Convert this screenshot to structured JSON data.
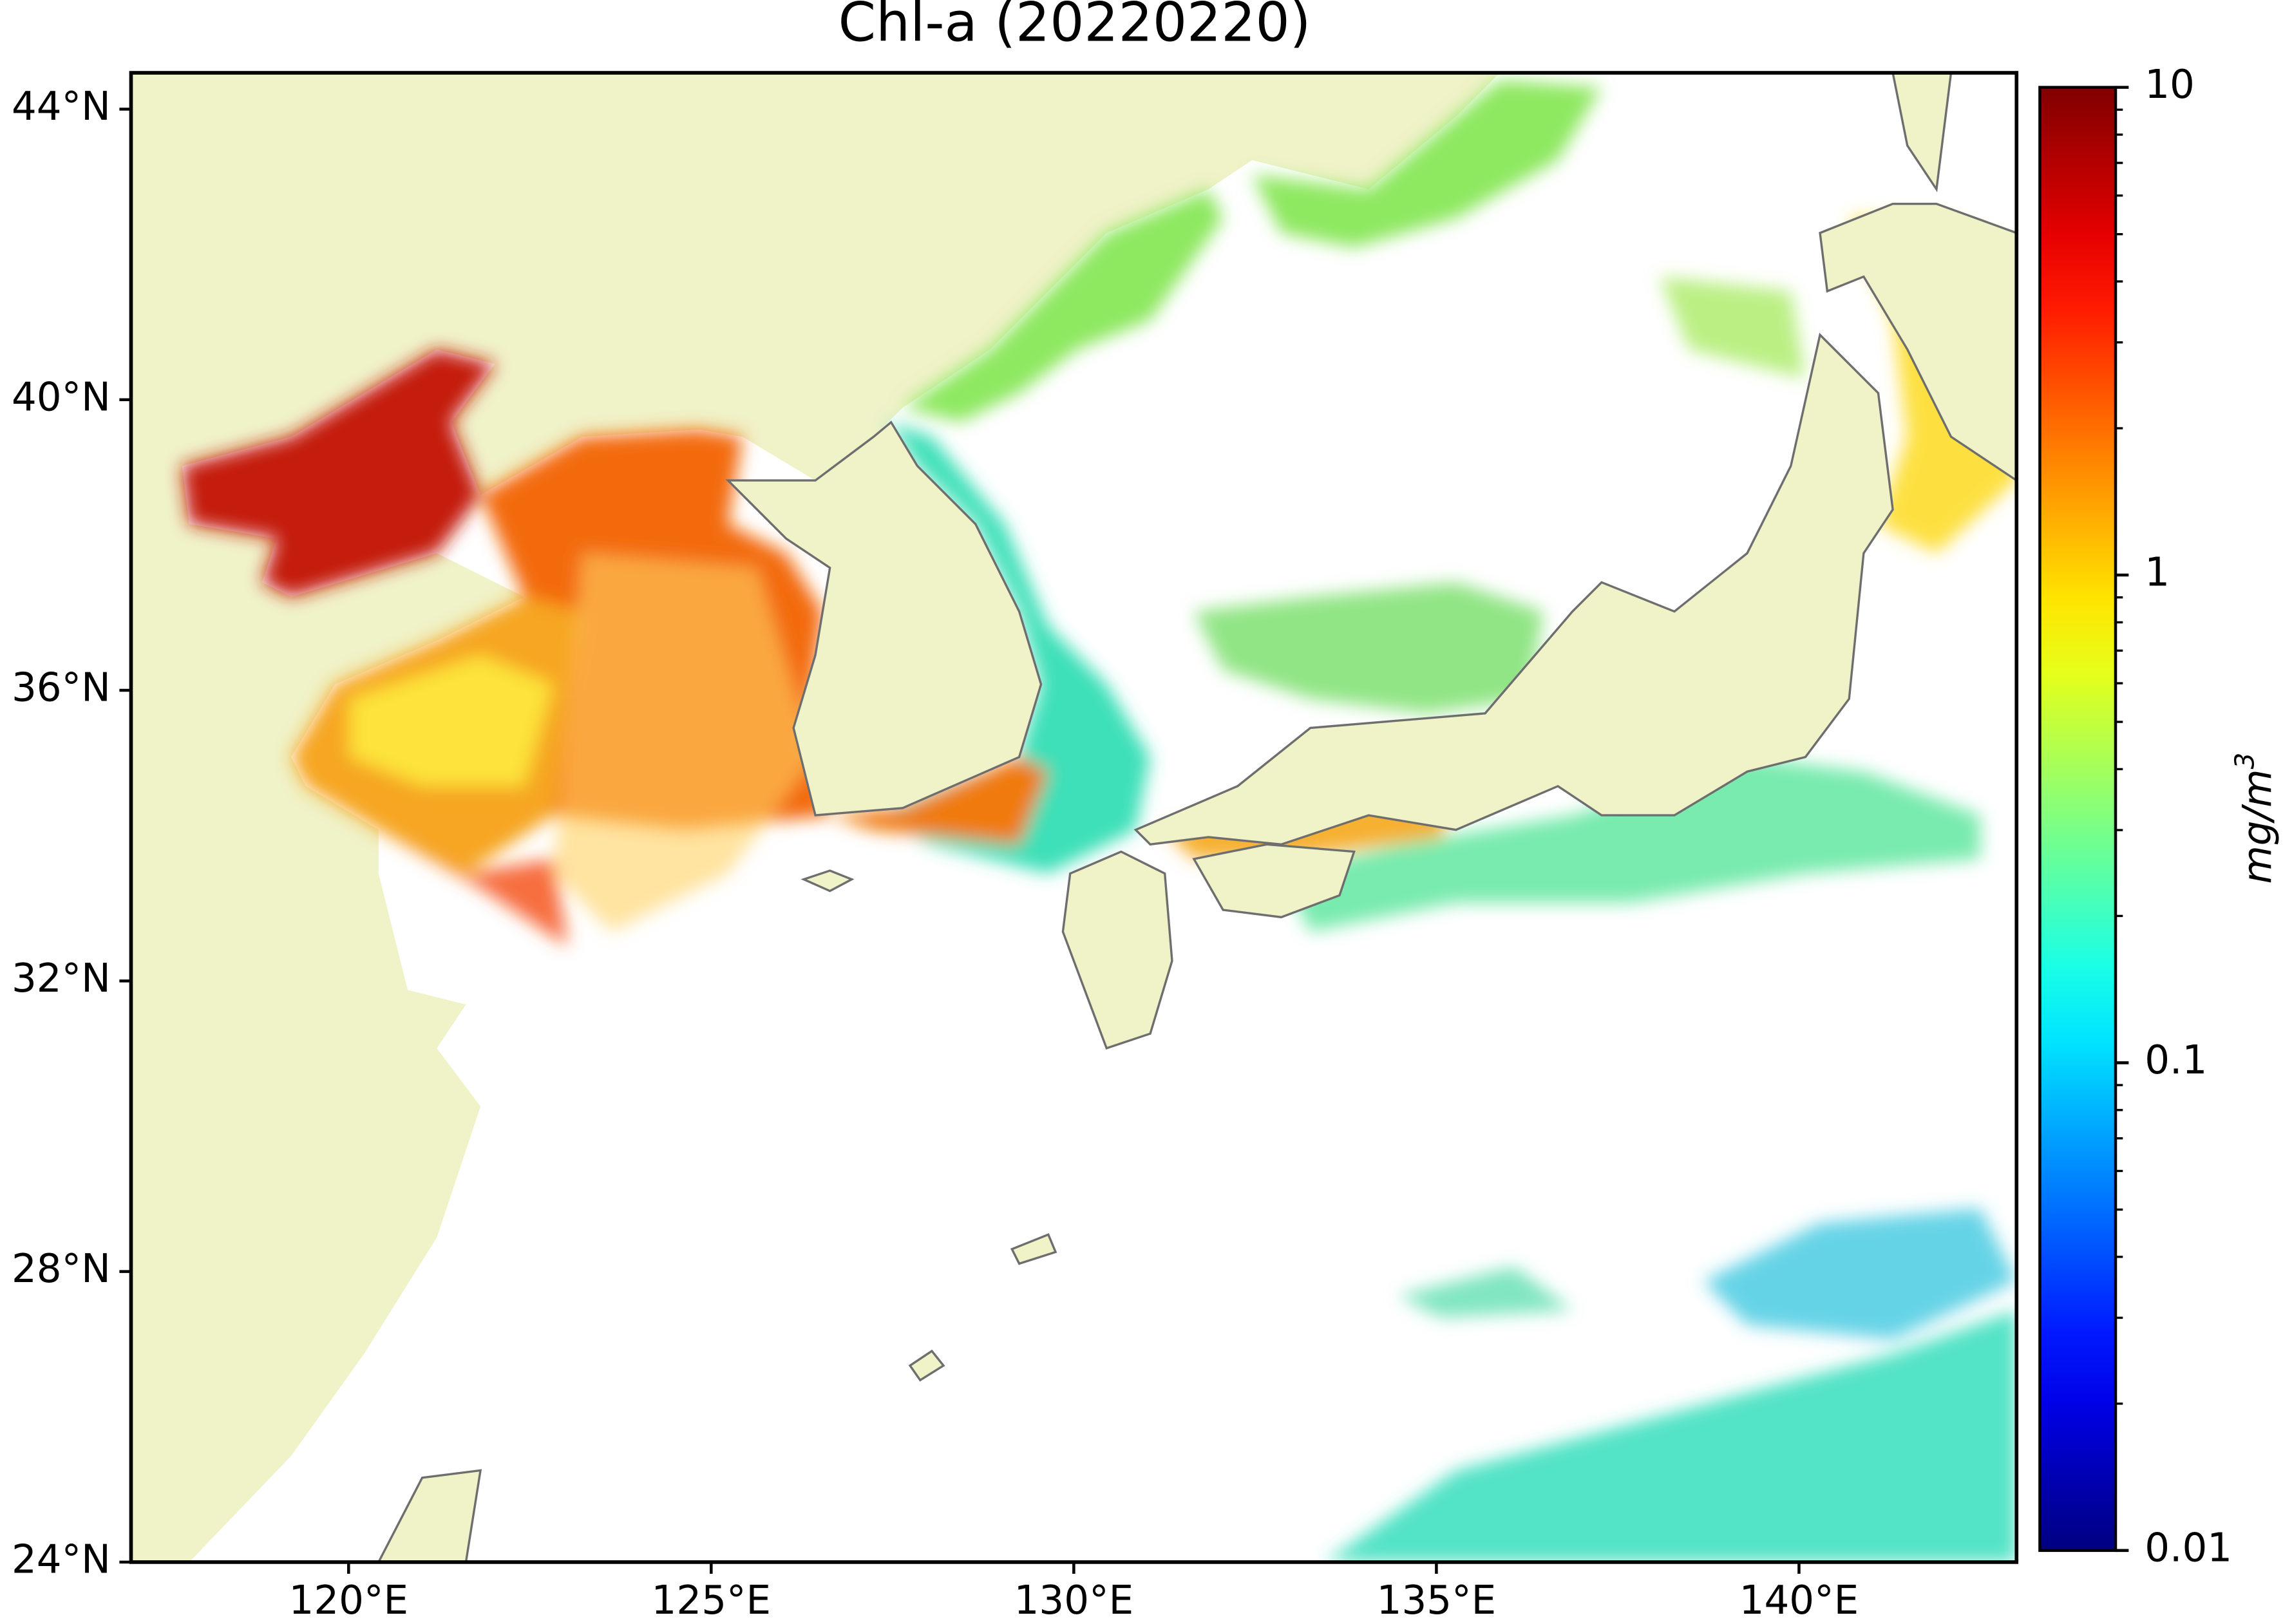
{
  "title": "Chl-a (20220220)",
  "map": {
    "xlim": [
      117,
      143
    ],
    "ylim": [
      24,
      44.5
    ],
    "xticks": [
      {
        "value": 120,
        "label": "120°E"
      },
      {
        "value": 125,
        "label": "125°E"
      },
      {
        "value": 130,
        "label": "130°E"
      },
      {
        "value": 135,
        "label": "135°E"
      },
      {
        "value": 140,
        "label": "140°E"
      }
    ],
    "yticks": [
      {
        "value": 24,
        "label": "24°N"
      },
      {
        "value": 28,
        "label": "28°N"
      },
      {
        "value": 32,
        "label": "32°N"
      },
      {
        "value": 36,
        "label": "36°N"
      },
      {
        "value": 40,
        "label": "40°N"
      },
      {
        "value": 44,
        "label": "44°N"
      }
    ]
  },
  "colorbar": {
    "lim": [
      0.01,
      10
    ],
    "ticks": [
      0.01,
      0.1,
      1,
      10
    ],
    "minor_ticks": [
      0.02,
      0.03,
      0.04,
      0.05,
      0.06,
      0.07,
      0.08,
      0.09,
      0.2,
      0.3,
      0.4,
      0.5,
      0.6,
      0.7,
      0.8,
      0.9,
      2,
      3,
      4,
      5,
      6,
      7,
      8,
      9
    ],
    "log_scale": true,
    "colormap": "jet",
    "label": "mg/m",
    "label_superscript": "3"
  }
}
